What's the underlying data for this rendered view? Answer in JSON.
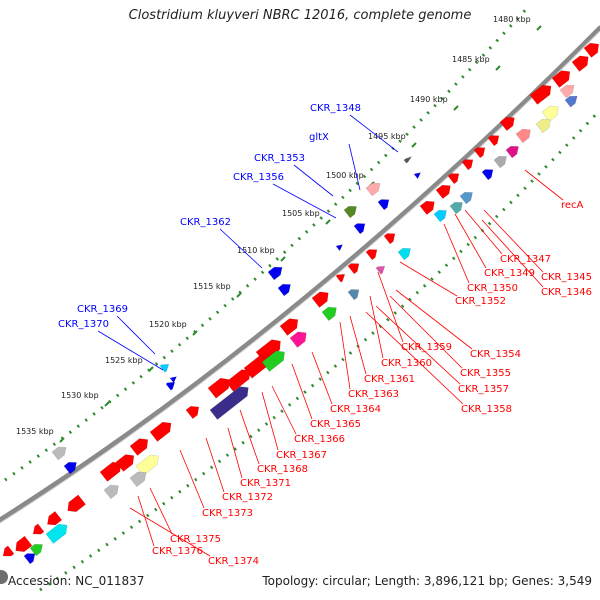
{
  "title": "Clostridium kluyveri NBRC 12016, complete genome",
  "footer": {
    "accession": "Accession: NC_011837",
    "summary": "Topology: circular; Length: 3,896,121 bp; Genes: 3,549"
  },
  "colors": {
    "backbone": "#8a8a8a",
    "ruler": "#2e8b2e",
    "gene_label": "#ff0000",
    "named_label": "#0000ff"
  },
  "ruler_ticks": [
    "1480 kbp",
    "1485 kbp",
    "1490 kbp",
    "1495 kbp",
    "1500 kbp",
    "1505 kbp",
    "1510 kbp",
    "1515 kbp",
    "1520 kbp",
    "1525 kbp",
    "1530 kbp",
    "1535 kbp"
  ],
  "blue_labels": [
    "CKR_1348",
    "gltX",
    "CKR_1353",
    "CKR_1356",
    "CKR_1362",
    "CKR_1369",
    "CKR_1370"
  ],
  "red_labels": [
    "recA",
    "CKR_1347",
    "CKR_1349",
    "CKR_1345",
    "CKR_1350",
    "CKR_1346",
    "CKR_1352",
    "CKR_1354",
    "CKR_1359",
    "CKR_1355",
    "CKR_1360",
    "CKR_1357",
    "CKR_1361",
    "CKR_1358",
    "CKR_1363",
    "CKR_1364",
    "CKR_1365",
    "CKR_1366",
    "CKR_1367",
    "CKR_1368",
    "CKR_1371",
    "CKR_1372",
    "CKR_1373",
    "CKR_1375",
    "CKR_1376",
    "CKR_1374"
  ]
}
